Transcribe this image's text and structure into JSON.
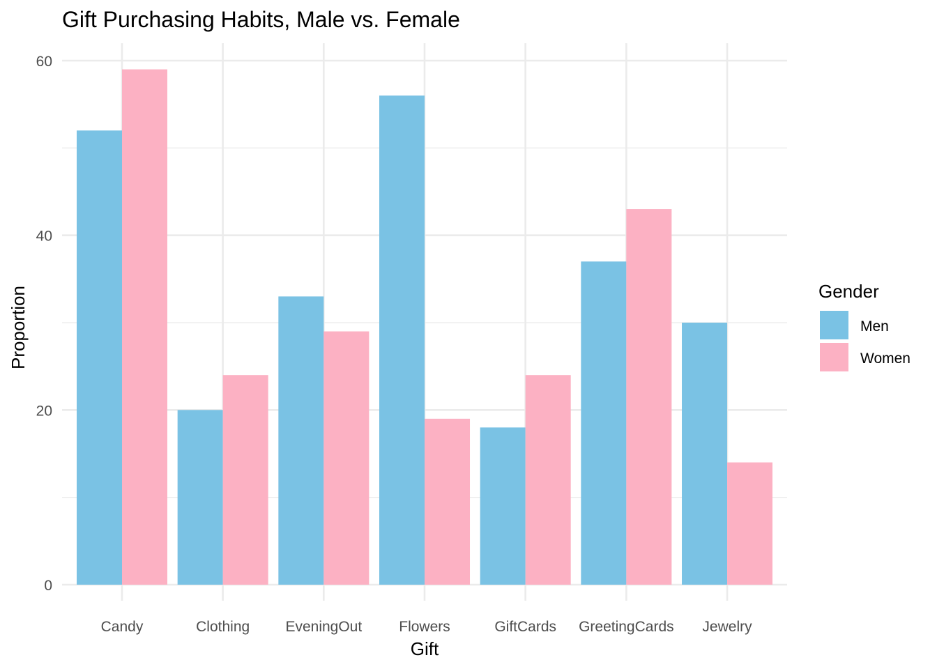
{
  "chart_data": {
    "type": "bar",
    "title": "Gift Purchasing Habits, Male vs. Female",
    "xlabel": "Gift",
    "ylabel": "Proportion",
    "categories": [
      "Candy",
      "Clothing",
      "EveningOut",
      "Flowers",
      "GiftCards",
      "GreetingCards",
      "Jewelry"
    ],
    "series": [
      {
        "name": "Men",
        "color": "#7AC2E4",
        "values": [
          52,
          20,
          33,
          56,
          18,
          37,
          30
        ]
      },
      {
        "name": "Women",
        "color": "#FCB1C3",
        "values": [
          59,
          24,
          29,
          19,
          24,
          43,
          14
        ]
      }
    ],
    "ylim": [
      0,
      62
    ],
    "yticks": [
      0,
      20,
      40,
      60
    ],
    "ytick_labels": [
      "0",
      "20",
      "40",
      "60"
    ],
    "legend": {
      "title": "Gender",
      "position": "right"
    },
    "grid": true
  }
}
